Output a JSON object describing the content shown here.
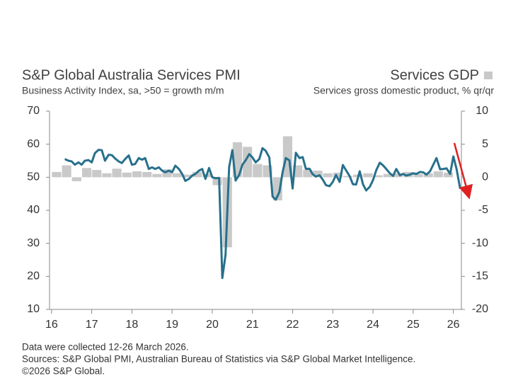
{
  "chart_data": {
    "type": "combo",
    "title": "S&P Global Australia Services PMI",
    "subtitle": "Business Activity Index, sa, >50 = growth m/m",
    "y2_subtitle": "Services gross domestic product, % qr/qr",
    "notes": [
      "Data were collected 12-26 March 2026.",
      "Sources: S&P Global PMI, Australian Bureau of Statistics via S&P Global Market Intelligence.",
      "©2026 S&P Global."
    ],
    "xlim": [
      15.95,
      26.2
    ],
    "xticks": [
      16,
      17,
      18,
      19,
      20,
      21,
      22,
      23,
      24,
      25,
      26
    ],
    "ylim": [
      10,
      70
    ],
    "yticks": [
      10,
      20,
      30,
      40,
      50,
      60,
      70
    ],
    "y2lim": [
      -20,
      10
    ],
    "y2ticks": [
      -20,
      -15,
      -10,
      -5,
      0,
      5,
      10
    ],
    "series": [
      {
        "type": "line",
        "axis": "y",
        "color": "#27708c",
        "x": [
          16.33,
          16.42,
          16.5,
          16.58,
          16.67,
          16.75,
          16.83,
          16.92,
          17,
          17.08,
          17.17,
          17.25,
          17.33,
          17.42,
          17.5,
          17.58,
          17.67,
          17.75,
          17.83,
          17.92,
          18,
          18.08,
          18.17,
          18.25,
          18.33,
          18.42,
          18.5,
          18.58,
          18.67,
          18.75,
          18.83,
          18.92,
          19,
          19.08,
          19.17,
          19.25,
          19.33,
          19.42,
          19.5,
          19.58,
          19.67,
          19.75,
          19.83,
          19.92,
          20,
          20.08,
          20.17,
          20.25,
          20.33,
          20.42,
          20.5,
          20.58,
          20.67,
          20.75,
          20.83,
          20.92,
          21,
          21.08,
          21.17,
          21.25,
          21.33,
          21.42,
          21.5,
          21.58,
          21.67,
          21.75,
          21.83,
          21.92,
          22,
          22.08,
          22.17,
          22.25,
          22.33,
          22.42,
          22.5,
          22.58,
          22.67,
          22.75,
          22.83,
          22.92,
          23,
          23.08,
          23.17,
          23.25,
          23.33,
          23.42,
          23.5,
          23.58,
          23.67,
          23.75,
          23.83,
          23.92,
          24,
          24.08,
          24.17,
          24.25,
          24.33,
          24.42,
          24.5,
          24.58,
          24.67,
          24.75,
          24.83,
          24.92,
          25,
          25.08,
          25.17,
          25.25,
          25.33,
          25.42,
          25.5,
          25.58,
          25.67,
          25.75,
          25.83,
          25.92,
          26,
          26.08,
          26.17
        ],
        "values": [
          55.5,
          55,
          54.8,
          53.8,
          54.5,
          53.8,
          55,
          55.2,
          54.5,
          57.3,
          58.3,
          58.2,
          55,
          56.8,
          56.7,
          55.7,
          54.8,
          54.3,
          55.5,
          56.6,
          53.8,
          54,
          55.8,
          55.3,
          55.8,
          52.5,
          53,
          52.5,
          53,
          52,
          51.5,
          52,
          51.5,
          53.5,
          52.5,
          51,
          48.9,
          49.5,
          50.5,
          51,
          52,
          52.5,
          49.5,
          52.8,
          50,
          49.7,
          49.8,
          19.5,
          26.5,
          53.1,
          58.2,
          49,
          50.7,
          53.8,
          55.1,
          57,
          56,
          54.5,
          55.5,
          58.8,
          58,
          56,
          44.2,
          43.2,
          45.5,
          51.5,
          55.8,
          55.1,
          46.6,
          57.4,
          55.8,
          56.1,
          52.5,
          52.6,
          50.9,
          50.2,
          50.6,
          49.3,
          47.6,
          47.3,
          48.6,
          50.7,
          48.6,
          53.7,
          52.1,
          50.3,
          47.9,
          47.8,
          51.8,
          47.9,
          46,
          47.1,
          49.1,
          52.1,
          54.4,
          53.6,
          52.5,
          51.2,
          50.4,
          52.5,
          50.6,
          51,
          50.5,
          50.8,
          51.2,
          51,
          51.6,
          51.5,
          50.8,
          51.8,
          53.8,
          55.8,
          52.4,
          52.5,
          52.7,
          51,
          56.3,
          52.5,
          46.5
        ]
      },
      {
        "type": "bar",
        "axis": "y2",
        "name": "Services GDP",
        "color": "#c9c9c9",
        "x": [
          16,
          16.25,
          16.5,
          16.75,
          17,
          17.25,
          17.5,
          17.75,
          18,
          18.25,
          18.5,
          18.75,
          19,
          19.25,
          19.5,
          19.75,
          20,
          20.25,
          20.5,
          20.75,
          21,
          21.25,
          21.5,
          21.75,
          22,
          22.25,
          22.5,
          22.75,
          23,
          23.25,
          23.5,
          23.75,
          24,
          24.25,
          24.5,
          24.75,
          25,
          25.25,
          25.5,
          25.75
        ],
        "values": [
          0.8,
          1.8,
          -0.6,
          1.4,
          1.1,
          0.6,
          1.3,
          0.7,
          0.9,
          0.8,
          0.5,
          1.2,
          0.6,
          0.4,
          0.8,
          0.5,
          -1.2,
          -10.6,
          5.3,
          4.6,
          2.0,
          1.8,
          -3.5,
          6.2,
          1.8,
          1.1,
          1.0,
          0.6,
          0.7,
          0.2,
          0.4,
          0.6,
          0.3,
          0.5,
          0.6,
          0.8,
          0.5,
          0.6,
          0.9,
          0.7
        ]
      }
    ]
  }
}
